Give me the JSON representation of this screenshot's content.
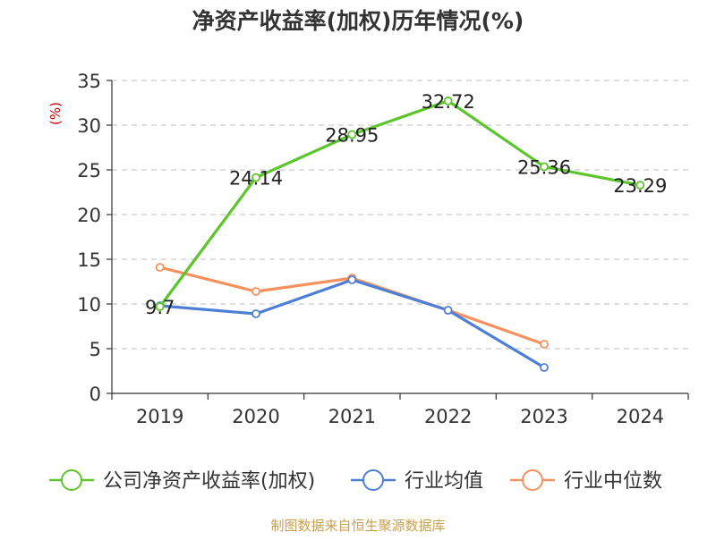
{
  "chart_data": {
    "type": "line",
    "title": "净资产收益率(加权)历年情况(%)",
    "ylabel": "(%)",
    "xlabel": "",
    "categories": [
      "2019",
      "2020",
      "2021",
      "2022",
      "2023",
      "2024"
    ],
    "ylim": [
      0,
      35
    ],
    "yticks": [
      0,
      5,
      10,
      15,
      20,
      25,
      30,
      35
    ],
    "grid": true,
    "legend_position": "bottom",
    "series": [
      {
        "name": "公司净资产收益率(加权)",
        "color": "#5cc52b",
        "values": [
          9.7,
          24.14,
          28.95,
          32.72,
          25.36,
          23.29
        ],
        "labels": [
          "9.7",
          "24.14",
          "28.95",
          "32.72",
          "25.36",
          "23.29"
        ]
      },
      {
        "name": "行业均值",
        "color": "#4e7fd7",
        "values": [
          9.8,
          8.9,
          12.7,
          9.3,
          2.9,
          null
        ]
      },
      {
        "name": "行业中位数",
        "color": "#f7915e",
        "values": [
          14.1,
          11.4,
          12.9,
          9.3,
          5.5,
          null
        ]
      }
    ],
    "source": "制图数据来自恒生聚源数据库"
  },
  "colors": {
    "title": "#333333",
    "axis": "#333333",
    "grid": "#cccccc",
    "ylabel": "#cc0000",
    "source": "#c8a050"
  }
}
